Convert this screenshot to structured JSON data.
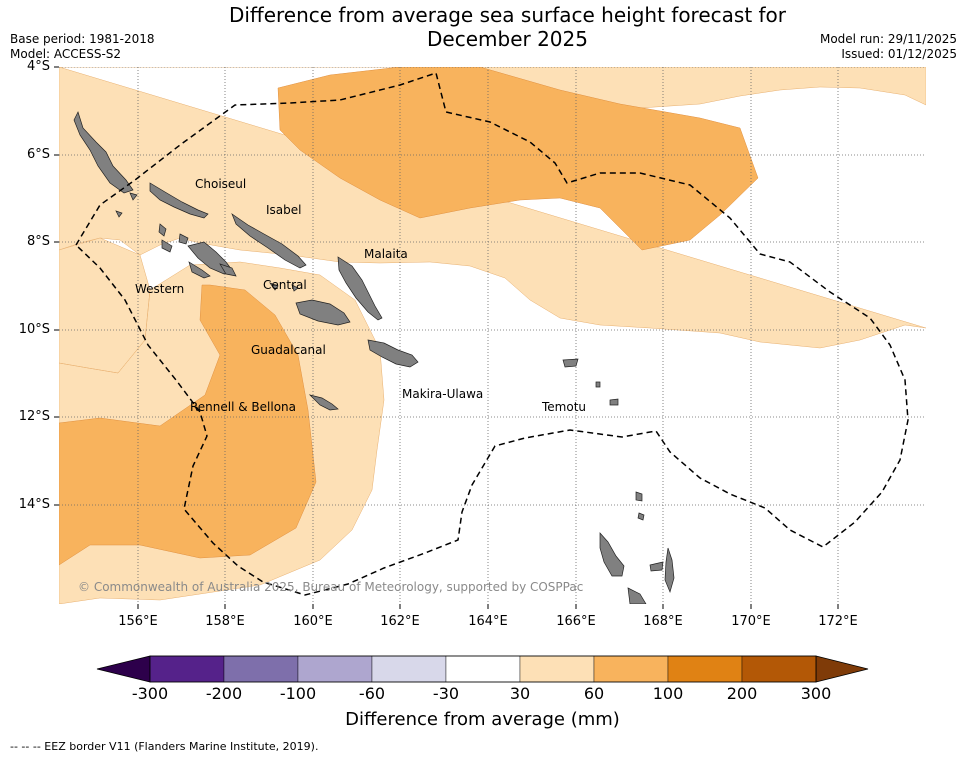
{
  "title_line1": "Difference from average sea surface height forecast for",
  "title_line2": "December 2025",
  "base_period": "Base period: 1981-2018",
  "model": "Model: ACCESS-S2",
  "model_run": "Model run: 29/11/2025",
  "issued": "Issued: 01/12/2025",
  "lat_labels": [
    "4°S",
    "6°S",
    "8°S",
    "10°S",
    "12°S",
    "14°S"
  ],
  "lon_labels": [
    "156°E",
    "158°E",
    "160°E",
    "162°E",
    "164°E",
    "166°E",
    "168°E",
    "170°E",
    "172°E"
  ],
  "regions": {
    "choiseul": "Choiseul",
    "isabel": "Isabel",
    "malaita": "Malaita",
    "western": "Western",
    "central": "Central",
    "guadalcanal": "Guadalcanal",
    "makira": "Makira-Ulawa",
    "temotu": "Temotu",
    "rennell": "Rennell & Bellona"
  },
  "copyright": "© Commonwealth of Australia 2025, Bureau of Meteorology, supported by COSPPac",
  "colorbar": {
    "ticks": [
      "-300",
      "-200",
      "-100",
      "-60",
      "-30",
      "30",
      "60",
      "100",
      "200",
      "300"
    ],
    "colors": [
      "#55228a",
      "#7e6fab",
      "#aea6cf",
      "#d8d8ea",
      "#ffffff",
      "#fde0b6",
      "#f8b35d",
      "#e08214",
      "#b35806"
    ],
    "under_color": "#2d004b",
    "over_color": "#7f3b08",
    "label": "Difference from average (mm)"
  },
  "footer": "--  --  -- EEZ border V11 (Flanders Marine Institute, 2019)."
}
